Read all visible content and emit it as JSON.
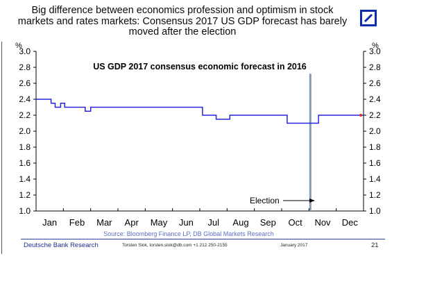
{
  "headline": "Big difference between economics profession and optimism in stock markets and rates markets: Consensus 2017 US GDP forecast has barely moved after the election",
  "logo": {
    "icon": "deutsche-bank-slash-logo",
    "color": "#0c2bb0"
  },
  "footer": {
    "organization": "Deutsche Bank Research",
    "author": "Torsten Slok, torsten.slok@db.com +1 212 250-2155",
    "date": "January 2017",
    "page": "21"
  },
  "chart_data": {
    "type": "line",
    "title": "US GDP 2017 consensus economic forecast in 2016",
    "source": "Source: Bloomberg Finance LP, DB Global Markets Research",
    "ylabel_left": "%",
    "ylabel_right": "%",
    "ylim": [
      1.0,
      3.0
    ],
    "yticks": [
      1.0,
      1.2,
      1.4,
      1.6,
      1.8,
      2.0,
      2.2,
      2.4,
      2.6,
      2.8,
      3.0
    ],
    "ytick_labels": [
      "1.0",
      "1.2",
      "1.4",
      "1.6",
      "1.8",
      "2.0",
      "2.2",
      "2.4",
      "2.6",
      "2.8",
      "3.0"
    ],
    "xlim": [
      0,
      12
    ],
    "month_labels": [
      "Jan",
      "Feb",
      "Mar",
      "Apr",
      "May",
      "Jun",
      "Jul",
      "Aug",
      "Sep",
      "Oct",
      "Nov",
      "Dec"
    ],
    "series": [
      {
        "name": "US GDP 2017 consensus forecast",
        "color": "#2323e0",
        "x": [
          0.0,
          0.55,
          0.55,
          0.7,
          0.7,
          0.9,
          0.9,
          1.05,
          1.05,
          1.3,
          1.3,
          1.8,
          1.8,
          2.0,
          2.0,
          2.4,
          2.4,
          3.8,
          3.8,
          5.1,
          5.1,
          6.1,
          6.1,
          6.4,
          6.4,
          6.6,
          6.6,
          7.1,
          7.1,
          9.2,
          9.2,
          10.35,
          10.35,
          11.9,
          11.9,
          12.0
        ],
        "values": [
          2.4,
          2.4,
          2.35,
          2.35,
          2.3,
          2.3,
          2.35,
          2.35,
          2.3,
          2.3,
          2.3,
          2.3,
          2.25,
          2.25,
          2.3,
          2.3,
          2.3,
          2.3,
          2.3,
          2.3,
          2.3,
          2.3,
          2.2,
          2.2,
          2.2,
          2.2,
          2.15,
          2.15,
          2.2,
          2.2,
          2.1,
          2.1,
          2.2,
          2.2,
          2.2,
          2.2
        ]
      }
    ],
    "endpoint_marker": {
      "x": 11.9,
      "value": 2.2,
      "color": "#d42d2d"
    },
    "annotations": [
      {
        "label": "Election",
        "x": 10.05,
        "color": "#8799b5"
      }
    ]
  }
}
